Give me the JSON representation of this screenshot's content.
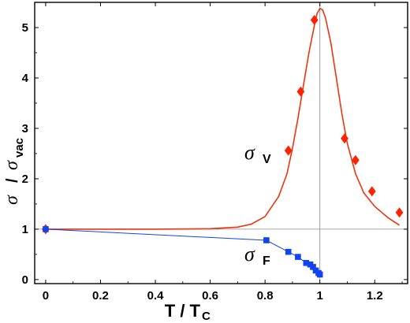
{
  "chart_data": {
    "type": "scatter",
    "xlim": [
      -0.04,
      1.32
    ],
    "ylim": [
      -0.08,
      5.5
    ],
    "xticks": [
      "0",
      "0.2",
      "0.4",
      "0.6",
      "0.8",
      "1",
      "1.2"
    ],
    "yticks": [
      "0",
      "1",
      "2",
      "3",
      "4",
      "5"
    ],
    "xlabel": {
      "main": "T / T",
      "sub": "C"
    },
    "ylabel": {
      "sigma1": "σ",
      "slash": "/",
      "sigma2": "σ",
      "sub": "vac"
    },
    "reference_lines": {
      "x": 1,
      "y": 1
    },
    "series": [
      {
        "label_sigma": "σ",
        "label_sub": "V",
        "color": "#ff2200",
        "marker": "diamond",
        "points": [
          [
            0,
            1.0
          ],
          [
            0.885,
            2.56
          ],
          [
            0.93,
            3.73
          ],
          [
            0.98,
            5.15
          ],
          [
            1.09,
            2.8
          ],
          [
            1.13,
            2.37
          ],
          [
            1.19,
            1.75
          ],
          [
            1.29,
            1.33
          ]
        ],
        "fit_curve": {
          "color": "#ee3311",
          "points": [
            [
              0,
              1.0
            ],
            [
              0.2,
              1.0
            ],
            [
              0.4,
              1.0
            ],
            [
              0.6,
              1.01
            ],
            [
              0.7,
              1.04
            ],
            [
              0.75,
              1.1
            ],
            [
              0.8,
              1.25
            ],
            [
              0.85,
              1.65
            ],
            [
              0.88,
              2.1
            ],
            [
              0.9,
              2.6
            ],
            [
              0.92,
              3.2
            ],
            [
              0.94,
              3.85
            ],
            [
              0.96,
              4.5
            ],
            [
              0.98,
              5.05
            ],
            [
              0.99,
              5.28
            ],
            [
              1.0,
              5.38
            ],
            [
              1.01,
              5.35
            ],
            [
              1.02,
              5.2
            ],
            [
              1.04,
              4.7
            ],
            [
              1.06,
              4.0
            ],
            [
              1.08,
              3.3
            ],
            [
              1.1,
              2.7
            ],
            [
              1.13,
              2.1
            ],
            [
              1.16,
              1.72
            ],
            [
              1.2,
              1.45
            ],
            [
              1.25,
              1.22
            ],
            [
              1.29,
              1.08
            ]
          ]
        }
      },
      {
        "label_sigma": "σ",
        "label_sub": "F",
        "color": "#1144ee",
        "marker": "square",
        "connect": true,
        "points": [
          [
            0,
            1.0
          ],
          [
            0.805,
            0.78
          ],
          [
            0.885,
            0.55
          ],
          [
            0.92,
            0.45
          ],
          [
            0.95,
            0.33
          ],
          [
            0.965,
            0.3
          ],
          [
            0.975,
            0.25
          ],
          [
            0.985,
            0.18
          ],
          [
            0.995,
            0.13
          ],
          [
            1.0,
            0.1
          ]
        ]
      }
    ]
  }
}
